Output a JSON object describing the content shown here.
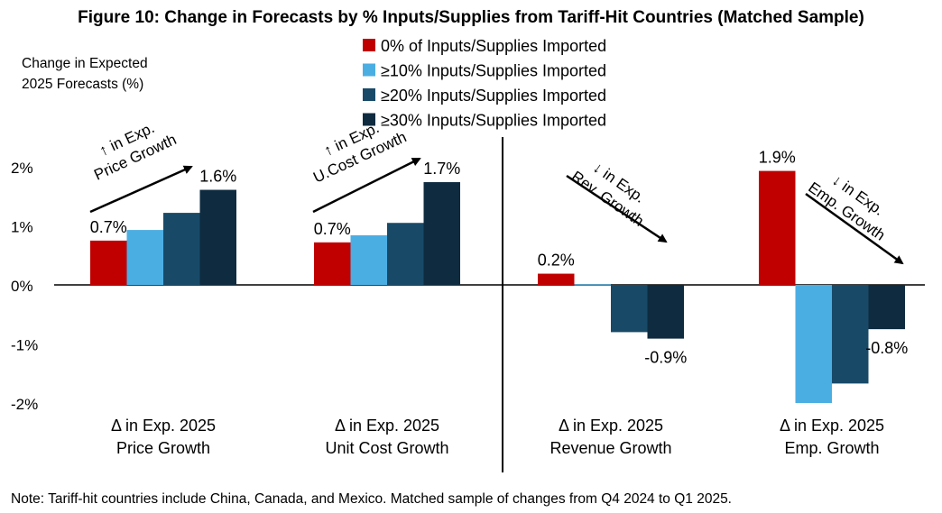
{
  "chart_data": {
    "type": "bar",
    "title": "Figure 10: Change in Forecasts by % Inputs/Supplies from Tariff-Hit Countries (Matched Sample)",
    "ylabel": [
      "Change in Expected",
      "2025 Forecasts (%)"
    ],
    "ylim": [
      -2,
      2
    ],
    "yticks": [
      {
        "value": 2,
        "label": "2%"
      },
      {
        "value": 1,
        "label": "1%"
      },
      {
        "value": 0,
        "label": "0%"
      },
      {
        "value": -1,
        "label": "-1%"
      },
      {
        "value": -2,
        "label": "-2%"
      }
    ],
    "categories": [
      [
        "Δ in Exp. 2025",
        "Price Growth"
      ],
      [
        "Δ in Exp. 2025",
        "Unit Cost Growth"
      ],
      [
        "Δ in Exp. 2025",
        "Revenue Growth"
      ],
      [
        "Δ in Exp. 2025",
        "Emp. Growth"
      ]
    ],
    "series": [
      {
        "name": "0% of Inputs/Supplies Imported",
        "color": "#C00000",
        "values": [
          0.75,
          0.72,
          0.19,
          1.93
        ]
      },
      {
        "name": "≥10% Inputs/Supplies  Imported",
        "color": "#4BAEE3",
        "values": [
          0.93,
          0.84,
          0.01,
          -2.0
        ]
      },
      {
        "name": "≥20% Inputs/Supplies  Imported",
        "color": "#184A68",
        "values": [
          1.22,
          1.05,
          -0.8,
          -1.67
        ]
      },
      {
        "name": "≥30%  Inputs/Supplies  Imported",
        "color": "#0E2B40",
        "values": [
          1.61,
          1.74,
          -0.91,
          -0.75
        ]
      }
    ],
    "data_labels": [
      {
        "category": 0,
        "series": 0,
        "text": "0.7%"
      },
      {
        "category": 0,
        "series": 3,
        "text": "1.6%"
      },
      {
        "category": 1,
        "series": 0,
        "text": "0.7%"
      },
      {
        "category": 1,
        "series": 3,
        "text": "1.7%"
      },
      {
        "category": 2,
        "series": 0,
        "text": "0.2%"
      },
      {
        "category": 2,
        "series": 3,
        "text": "-0.9%"
      },
      {
        "category": 3,
        "series": 0,
        "text": "1.9%"
      },
      {
        "category": 3,
        "series": 3,
        "text": "-0.8%"
      }
    ],
    "annotations": [
      {
        "lines": [
          "↑ in Exp.",
          "Price Growth"
        ],
        "direction": "up"
      },
      {
        "lines": [
          "↑ in Exp.",
          "U.Cost Growth"
        ],
        "direction": "up"
      },
      {
        "lines": [
          "↓ in Exp.",
          "Rev. Growth"
        ],
        "direction": "down"
      },
      {
        "lines": [
          "↓ in Exp.",
          "Emp. Growth"
        ],
        "direction": "down"
      }
    ],
    "legend_position": "top-center",
    "grid": false
  },
  "note": "Note: Tariff-hit countries include China, Canada, and Mexico. Matched sample of changes from Q4 2024 to Q1 2025."
}
